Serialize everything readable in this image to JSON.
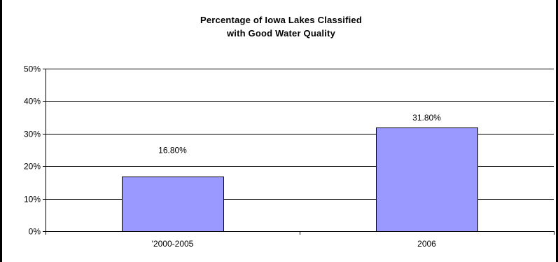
{
  "chart_data": {
    "type": "bar",
    "title_lines": [
      "Percentage of Iowa Lakes Classified",
      "with Good Water Quality"
    ],
    "categories": [
      "'2000-2005",
      "2006"
    ],
    "values": [
      16.8,
      31.8
    ],
    "data_labels": [
      "16.80%",
      "31.80%"
    ],
    "ylim": [
      0,
      50
    ],
    "yticks": [
      0,
      10,
      20,
      30,
      40,
      50
    ],
    "ytick_labels": [
      "0%",
      "10%",
      "20%",
      "30%",
      "40%",
      "50%"
    ],
    "grid": true,
    "legend": false,
    "bar_color": "#9999FF",
    "bar_edge_color": "#000000"
  }
}
